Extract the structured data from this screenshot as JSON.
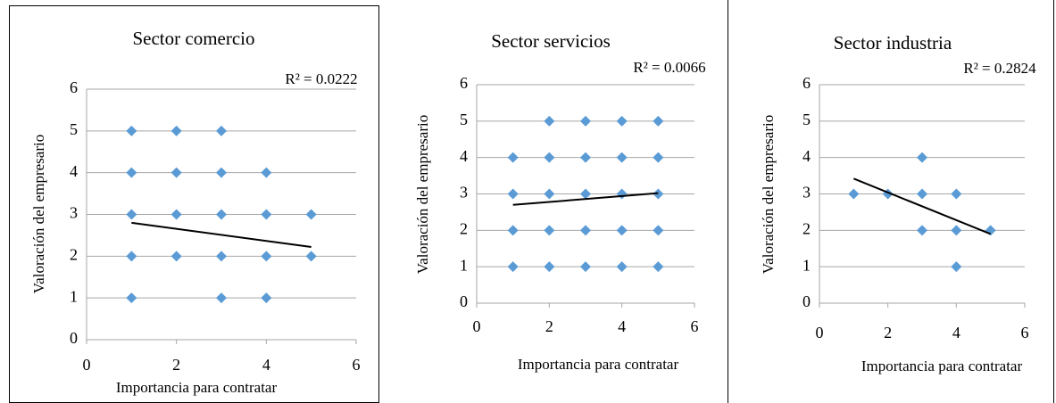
{
  "chart_data": [
    {
      "type": "scatter",
      "title": "Sector comercio",
      "x_label": "Importancia para contratar",
      "y_label": "Valoración del empresario",
      "annotation": "R² = 0.0222",
      "x": [
        1,
        1,
        1,
        1,
        1,
        2,
        2,
        2,
        2,
        3,
        3,
        3,
        3,
        3,
        4,
        4,
        4,
        4,
        5,
        5
      ],
      "y": [
        1,
        2,
        3,
        4,
        5,
        2,
        3,
        4,
        5,
        1,
        2,
        3,
        4,
        5,
        1,
        2,
        3,
        4,
        2,
        3
      ],
      "color": "#5b9bd5",
      "trendline": {
        "x": [
          1,
          5
        ],
        "y": [
          2.8,
          2.22
        ],
        "color": "#000000"
      },
      "xlim": [
        0,
        6
      ],
      "ylim": [
        0,
        6
      ],
      "xticks": [
        0,
        2,
        4,
        6
      ],
      "yticks": [
        0,
        1,
        2,
        3,
        4,
        5,
        6
      ],
      "grid": true
    },
    {
      "type": "scatter",
      "title": "Sector servicios",
      "x_label": "Importancia para contratar",
      "y_label": "Valoración del empresario",
      "annotation": "R² = 0.0066",
      "x": [
        1,
        1,
        1,
        1,
        2,
        2,
        2,
        2,
        2,
        3,
        3,
        3,
        3,
        3,
        4,
        4,
        4,
        4,
        4,
        5,
        5,
        5,
        5,
        5
      ],
      "y": [
        1,
        2,
        3,
        4,
        1,
        2,
        3,
        4,
        5,
        1,
        2,
        3,
        4,
        5,
        1,
        2,
        3,
        4,
        5,
        1,
        2,
        3,
        4,
        5
      ],
      "color": "#5b9bd5",
      "trendline": {
        "x": [
          1,
          5
        ],
        "y": [
          2.7,
          3.02
        ],
        "color": "#000000"
      },
      "xlim": [
        0,
        6
      ],
      "ylim": [
        0,
        6
      ],
      "xticks": [
        0,
        2,
        4,
        6
      ],
      "yticks": [
        0,
        1,
        2,
        3,
        4,
        5,
        6
      ],
      "grid": true
    },
    {
      "type": "scatter",
      "title": "Sector industria",
      "x_label": "Importancia para contratar",
      "y_label": "Valoración del empresario",
      "annotation": "R² = 0.2824",
      "x": [
        1,
        2,
        3,
        3,
        3,
        4,
        4,
        4,
        5
      ],
      "y": [
        3,
        3,
        2,
        3,
        4,
        1,
        2,
        3,
        2
      ],
      "color": "#5b9bd5",
      "trendline": {
        "x": [
          1,
          5
        ],
        "y": [
          3.42,
          1.9
        ],
        "color": "#000000"
      },
      "xlim": [
        0,
        6
      ],
      "ylim": [
        0,
        6
      ],
      "xticks": [
        0,
        2,
        4,
        6
      ],
      "yticks": [
        0,
        1,
        2,
        3,
        4,
        5,
        6
      ],
      "grid": true
    }
  ]
}
